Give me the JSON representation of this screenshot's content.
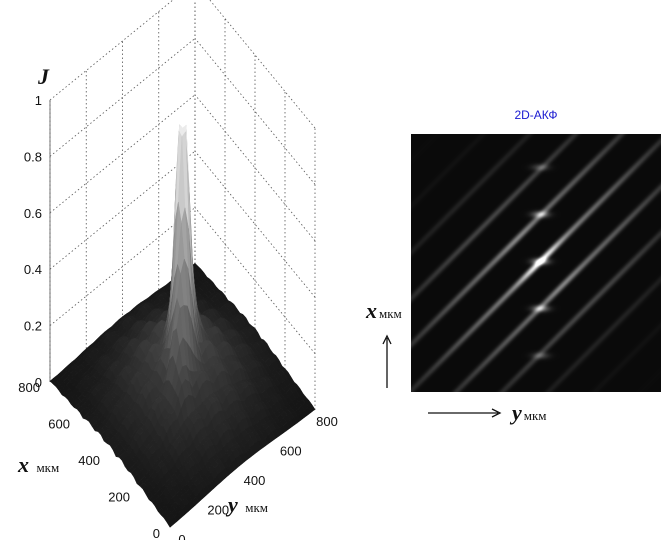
{
  "chart_data": [
    {
      "type": "surface",
      "title": "",
      "z_label": "J",
      "x_label": "x",
      "x_unit": "мкм",
      "y_label": "y",
      "y_unit": "мкм",
      "z_ticks": [
        "0",
        "0.2",
        "0.4",
        "0.6",
        "0.8",
        "1"
      ],
      "x_ticks": [
        "0",
        "200",
        "400",
        "600",
        "800"
      ],
      "y_ticks": [
        "0",
        "200",
        "400",
        "600",
        "800"
      ],
      "xlim": [
        0,
        800
      ],
      "ylim": [
        0,
        800
      ],
      "zlim": [
        0,
        1
      ],
      "peak": {
        "x": 400,
        "y": 400,
        "z": 0.88
      },
      "colormap": "gray"
    },
    {
      "type": "heatmap",
      "title": "2D-АКФ",
      "x_label": "x",
      "x_unit": "мкм",
      "y_label": "y",
      "y_unit": "мкм",
      "colormap": "gray",
      "background": "#000000"
    }
  ]
}
